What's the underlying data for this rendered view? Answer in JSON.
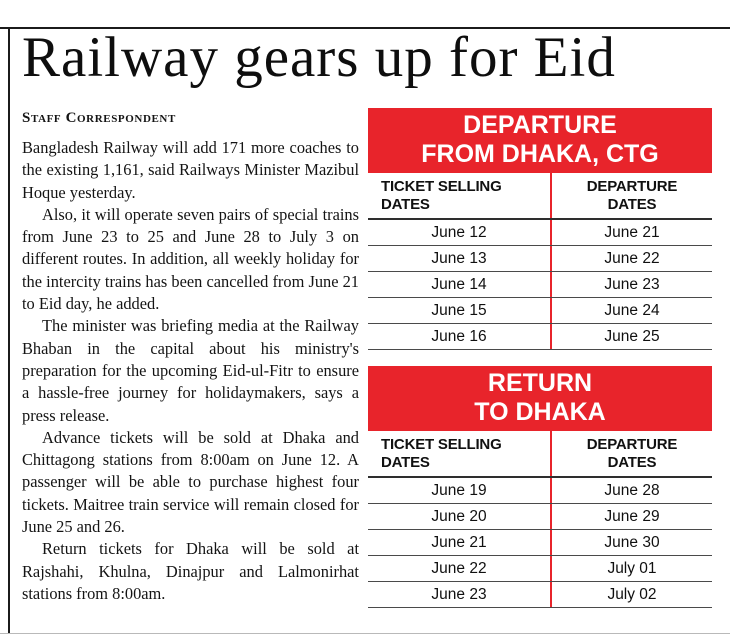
{
  "page": {
    "headline": "Railway gears up for Eid",
    "byline": "Staff Correspondent"
  },
  "article": {
    "paragraphs": [
      "Bangladesh Railway will add 171 more coaches to the existing 1,161, said Railways Minister Mazibul Hoque yesterday.",
      "Also, it will operate seven pairs of special trains from June 23 to 25 and June 28 to July 3 on different routes. In addition, all weekly holiday for the intercity trains has been cancelled from June 21 to Eid day, he added.",
      "The minister was briefing media at the Railway Bhaban in the capital about his ministry's preparation for the upcoming Eid-ul-Fitr to ensure a hassle-free journey for holidaymakers, says a press release.",
      "Advance tickets will be sold at Dhaka and Chittagong stations from 8:00am on June 12. A passenger will be able to purchase highest four tickets. Maitree train service will remain closed for June 25 and 26.",
      "Return tickets for Dhaka will be sold at Rajshahi, Khulna, Dinajpur and Lalmonirhat stations from 8:00am."
    ]
  },
  "schedule_tables": [
    {
      "banner": [
        "DEPARTURE",
        "FROM DHAKA, CTG"
      ],
      "columns": [
        [
          "TICKET SELLING",
          "DATES"
        ],
        [
          "DEPARTURE",
          "DATES"
        ]
      ],
      "rows": [
        [
          "June 12",
          "June 21"
        ],
        [
          "June 13",
          "June 22"
        ],
        [
          "June 14",
          "June 23"
        ],
        [
          "June 15",
          "June 24"
        ],
        [
          "June 16",
          "June 25"
        ]
      ]
    },
    {
      "banner": [
        "RETURN",
        "TO DHAKA"
      ],
      "columns": [
        [
          "TICKET SELLING",
          "DATES"
        ],
        [
          "DEPARTURE",
          "DATES"
        ]
      ],
      "rows": [
        [
          "June 19",
          "June 28"
        ],
        [
          "June 20",
          "June 29"
        ],
        [
          "June 21",
          "June 30"
        ],
        [
          "June 22",
          "July 01"
        ],
        [
          "June 23",
          "July 02"
        ]
      ]
    }
  ],
  "colors": {
    "banner_red": "#e8242b",
    "text_black": "#141414"
  }
}
